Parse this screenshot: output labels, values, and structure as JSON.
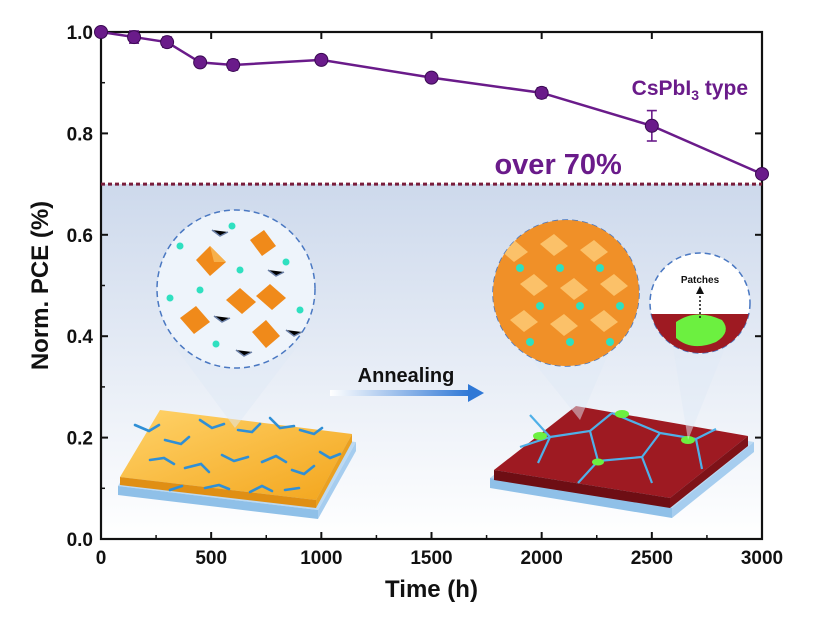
{
  "chart_data": {
    "type": "line",
    "xlabel": "Time (h)",
    "ylabel": "Norm. PCE (%)",
    "xlim": [
      0,
      3000
    ],
    "ylim": [
      0.0,
      1.0
    ],
    "x_ticks": [
      0,
      500,
      1000,
      1500,
      2000,
      2500,
      3000
    ],
    "x_tick_labels": [
      "0",
      "500",
      "1000",
      "1500",
      "2000",
      "2500",
      "3000"
    ],
    "y_ticks": [
      0.0,
      0.2,
      0.4,
      0.6,
      0.8,
      1.0
    ],
    "y_tick_labels": [
      "0.0",
      "0.2",
      "0.4",
      "0.6",
      "0.8",
      "1.0"
    ],
    "series": [
      {
        "name": "CsPbI",
        "name_sub": "3",
        "name_suffix": " type",
        "color": "#6a1b8a",
        "x": [
          0,
          150,
          300,
          450,
          600,
          1000,
          1500,
          2000,
          2500,
          3000
        ],
        "values": [
          1.0,
          0.99,
          0.98,
          0.94,
          0.935,
          0.945,
          0.91,
          0.88,
          0.815,
          0.72
        ],
        "errors": [
          0.005,
          0.012,
          0.01,
          0.008,
          0.01,
          0.008,
          0.008,
          0.01,
          0.03,
          0.008
        ]
      }
    ],
    "threshold": {
      "value": 0.7,
      "label": "over 70%",
      "color": "#7a1e3c"
    },
    "grid": false,
    "legend": "top-right"
  },
  "inset": {
    "arrow_label": "Annealing",
    "patch_label": "Patches"
  }
}
